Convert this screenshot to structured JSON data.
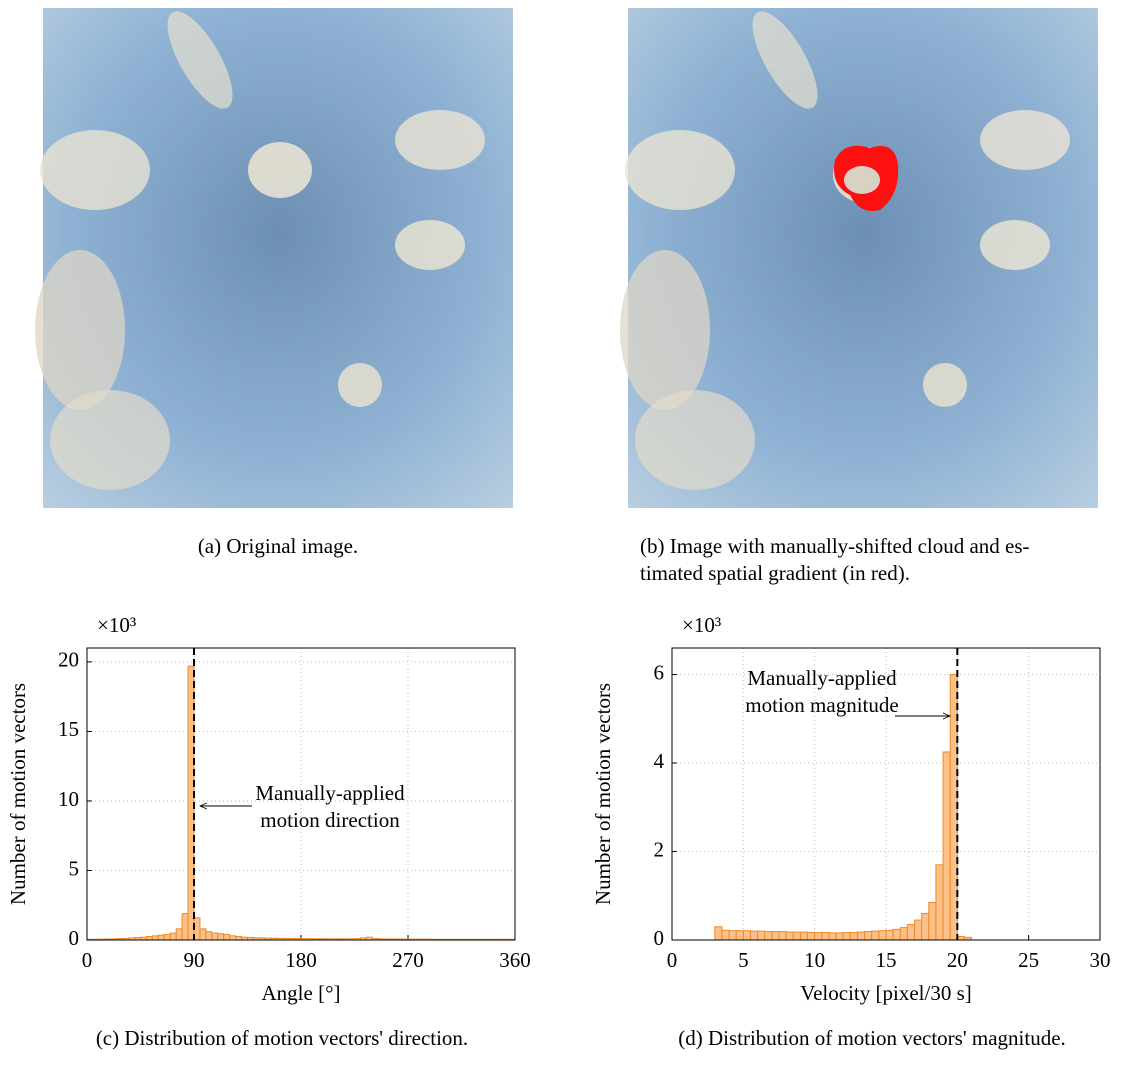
{
  "subfigures": [
    {
      "caption_lines": [
        "(a) Original image."
      ]
    },
    {
      "caption_lines": [
        "(b) Image with manually-shifted cloud and es-",
        "timated spatial gradient (in red)."
      ]
    }
  ],
  "chart_data": [
    {
      "type": "histogram",
      "caption": "(c) Distribution of motion vectors' direction.",
      "xlabel": "Angle [°]",
      "ylabel": "Number of motion vectors",
      "y_scale_label": "×10³",
      "bins": [
        0,
        5,
        10,
        15,
        20,
        25,
        30,
        35,
        40,
        45,
        50,
        55,
        60,
        65,
        70,
        75,
        80,
        85,
        90,
        95,
        100,
        105,
        110,
        115,
        120,
        125,
        130,
        135,
        140,
        145,
        150,
        155,
        160,
        165,
        170,
        175,
        180,
        185,
        190,
        195,
        200,
        205,
        210,
        215,
        220,
        225,
        230,
        235,
        240,
        245,
        250,
        255,
        260,
        265,
        270,
        275,
        280,
        285,
        290,
        295,
        300,
        305,
        310,
        315,
        320,
        325,
        330,
        335,
        340,
        345,
        350,
        355,
        360
      ],
      "values": [
        0.05,
        0.05,
        0.06,
        0.07,
        0.08,
        0.1,
        0.12,
        0.15,
        0.18,
        0.2,
        0.25,
        0.3,
        0.35,
        0.4,
        0.5,
        0.8,
        1.9,
        19.7,
        1.6,
        0.8,
        0.6,
        0.5,
        0.45,
        0.4,
        0.3,
        0.25,
        0.2,
        0.18,
        0.16,
        0.15,
        0.14,
        0.13,
        0.12,
        0.12,
        0.11,
        0.1,
        0.1,
        0.1,
        0.09,
        0.09,
        0.08,
        0.08,
        0.08,
        0.08,
        0.08,
        0.1,
        0.15,
        0.2,
        0.1,
        0.08,
        0.07,
        0.07,
        0.07,
        0.06,
        0.06,
        0.06,
        0.06,
        0.06,
        0.05,
        0.05,
        0.05,
        0.05,
        0.05,
        0.05,
        0.05,
        0.05,
        0.05,
        0.05,
        0.05,
        0.05,
        0.05,
        0.05
      ],
      "color": "#fdc088",
      "edge_color": "#f08a24",
      "xlim": [
        0,
        360
      ],
      "ylim": [
        0,
        21
      ],
      "xticks": [
        0,
        90,
        180,
        270,
        360
      ],
      "yticks": [
        0,
        5,
        10,
        15,
        20
      ],
      "grid": true,
      "reference_line": 90,
      "annotation": [
        "Manually-applied",
        "motion direction"
      ]
    },
    {
      "type": "histogram",
      "caption": "(d) Distribution of motion vectors' magnitude.",
      "xlabel": "Velocity [pixel/30 s]",
      "ylabel": "Number of motion vectors",
      "y_scale_label": "×10³",
      "bins": [
        3,
        3.5,
        4,
        4.5,
        5,
        5.5,
        6,
        6.5,
        7,
        7.5,
        8,
        8.5,
        9,
        9.5,
        10,
        10.5,
        11,
        11.5,
        12,
        12.5,
        13,
        13.5,
        14,
        14.5,
        15,
        15.5,
        16,
        16.5,
        17,
        17.5,
        18,
        18.5,
        19,
        19.5,
        20,
        20.5,
        21
      ],
      "values": [
        0.3,
        0.22,
        0.21,
        0.21,
        0.21,
        0.2,
        0.2,
        0.19,
        0.19,
        0.19,
        0.18,
        0.18,
        0.18,
        0.17,
        0.17,
        0.17,
        0.16,
        0.16,
        0.17,
        0.17,
        0.18,
        0.19,
        0.2,
        0.21,
        0.22,
        0.24,
        0.28,
        0.35,
        0.45,
        0.6,
        0.85,
        1.7,
        4.25,
        6.0,
        0.08,
        0.06
      ],
      "color": "#fdc088",
      "edge_color": "#f08a24",
      "xlim": [
        0,
        30
      ],
      "ylim": [
        0,
        6.6
      ],
      "xticks": [
        0,
        5,
        10,
        15,
        20,
        25,
        30
      ],
      "yticks": [
        0,
        2,
        4,
        6
      ],
      "grid": true,
      "reference_line": 20,
      "annotation": [
        "Manually-applied",
        "motion magnitude"
      ]
    }
  ]
}
